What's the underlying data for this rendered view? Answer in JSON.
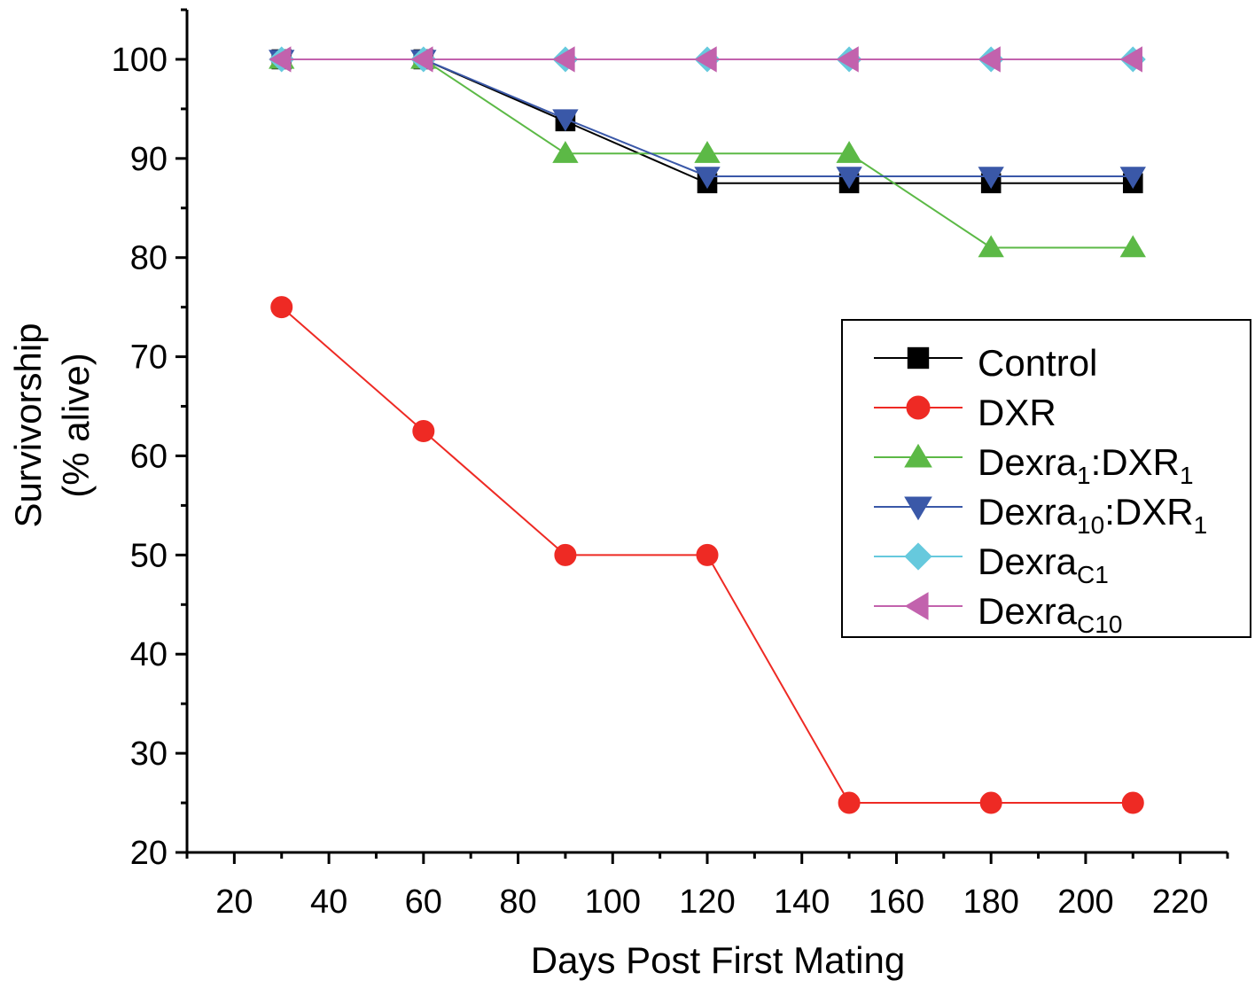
{
  "chart_data": {
    "type": "line",
    "xlabel": "Days Post First Mating",
    "ylabel_line1": "Survivorship",
    "ylabel_line2": "(% alive)",
    "xlim": [
      10,
      230
    ],
    "ylim": [
      20,
      105
    ],
    "x_ticks": [
      20,
      40,
      60,
      80,
      100,
      120,
      140,
      160,
      180,
      200,
      220
    ],
    "y_ticks": [
      20,
      30,
      40,
      50,
      60,
      70,
      80,
      90,
      100
    ],
    "x": [
      30,
      60,
      90,
      120,
      150,
      180,
      210
    ],
    "grid": false,
    "legend_position": "right-middle",
    "series": [
      {
        "name": "Control",
        "legend_main": "Control",
        "legend_sub": "",
        "legend_mid": "",
        "legend_sub2": "",
        "color": "#000000",
        "marker": "square",
        "values": [
          100,
          100,
          93.75,
          87.5,
          87.5,
          87.5,
          87.5
        ]
      },
      {
        "name": "DXR",
        "legend_main": "DXR",
        "legend_sub": "",
        "legend_mid": "",
        "legend_sub2": "",
        "color": "#ee2a24",
        "marker": "circle",
        "values": [
          75,
          62.5,
          50,
          50,
          25,
          25,
          25
        ]
      },
      {
        "name": "Dexra1:DXR1",
        "legend_main": "Dexra",
        "legend_sub": "1",
        "legend_mid": ":DXR",
        "legend_sub2": "1",
        "color": "#5cb946",
        "marker": "triangle-up",
        "values": [
          100,
          100,
          90.5,
          90.5,
          90.5,
          81,
          81
        ]
      },
      {
        "name": "Dexra10:DXR1",
        "legend_main": "Dexra",
        "legend_sub": "10",
        "legend_mid": ":DXR",
        "legend_sub2": "1",
        "color": "#3a58a8",
        "marker": "triangle-down",
        "values": [
          100,
          100,
          94,
          88.2,
          88.2,
          88.2,
          88.2
        ]
      },
      {
        "name": "DexraC1",
        "legend_main": "Dexra",
        "legend_sub": "C1",
        "legend_mid": "",
        "legend_sub2": "",
        "color": "#66c9dd",
        "marker": "diamond",
        "values": [
          100,
          100,
          100,
          100,
          100,
          100,
          100
        ]
      },
      {
        "name": "DexraC10",
        "legend_main": "Dexra",
        "legend_sub": "C10",
        "legend_mid": "",
        "legend_sub2": "",
        "color": "#c262ad",
        "marker": "triangle-left",
        "values": [
          100,
          100,
          100,
          100,
          100,
          100,
          100
        ]
      }
    ]
  }
}
